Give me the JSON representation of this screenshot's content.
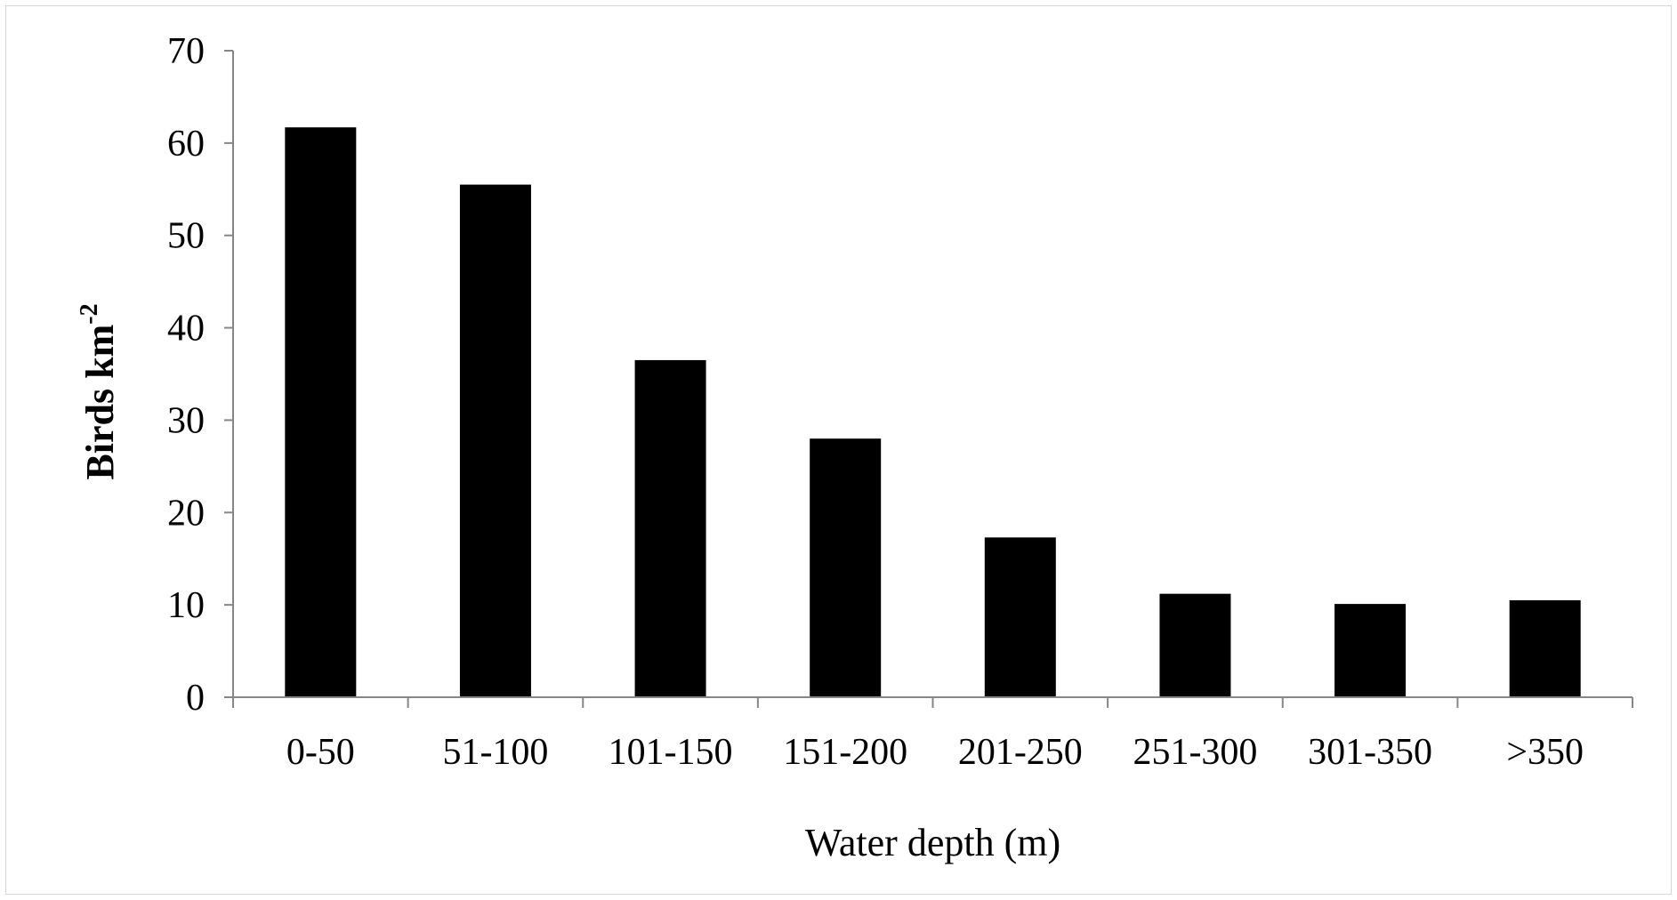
{
  "chart_data": {
    "type": "bar",
    "categories": [
      "0-50",
      "51-100",
      "101-150",
      "151-200",
      "201-250",
      "251-300",
      "301-350",
      ">350"
    ],
    "values": [
      61.7,
      55.5,
      36.5,
      28.0,
      17.3,
      11.2,
      10.1,
      10.5
    ],
    "title": "",
    "xlabel": "Water depth (m)",
    "ylabel": "Birds km",
    "ylabel_superscript": "-2",
    "ylim": [
      0,
      70
    ],
    "yticks": [
      "0",
      "10",
      "20",
      "30",
      "40",
      "50",
      "60",
      "70"
    ],
    "grid": false,
    "legend": "none",
    "bar_color": "#000000",
    "axis_color": "#868686"
  }
}
